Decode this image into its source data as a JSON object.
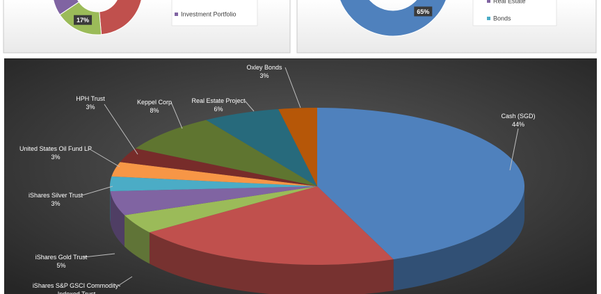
{
  "chart_data": [
    {
      "type": "donut",
      "categories": [
        null,
        null,
        "Investment Portfolio"
      ],
      "values": [
        58,
        17,
        25
      ],
      "value_labels": [
        null,
        "17%",
        null
      ],
      "colors": [
        "#c0504d",
        "#9bbb59",
        "#8064a2"
      ]
    },
    {
      "type": "donut",
      "categories": [
        null,
        null,
        "Real Estate",
        "Bonds"
      ],
      "values": [
        65,
        7,
        18,
        10
      ],
      "value_labels": [
        "65%",
        null,
        null,
        null
      ],
      "colors": [
        "#4f81bd",
        "#c0504d",
        "#8064a2",
        "#4bacc6"
      ]
    },
    {
      "type": "pie3d",
      "categories": [
        "Cash (SGD)",
        null,
        "iShares S&P GSCI Commodity-Indexed Trust",
        "iShares Gold Trust",
        "iShares Silver Trust",
        "United States Oil Fund LP",
        "HPH Trust",
        "Keppel Corp",
        "Real Estate Project",
        "Oxley Bonds"
      ],
      "values": [
        44,
        21,
        4,
        5,
        3,
        3,
        3,
        8,
        6,
        3
      ],
      "value_labels": [
        "44%",
        null,
        null,
        "5%",
        "3%",
        "3%",
        "3%",
        "8%",
        "6%",
        "3%"
      ],
      "colors": [
        "#4f81bd",
        "#c0504d",
        "#9bbb59",
        "#8064a2",
        "#4bacc6",
        "#f79646",
        "#772c2a",
        "#5f7530",
        "#276a7c",
        "#b65708"
      ]
    }
  ]
}
